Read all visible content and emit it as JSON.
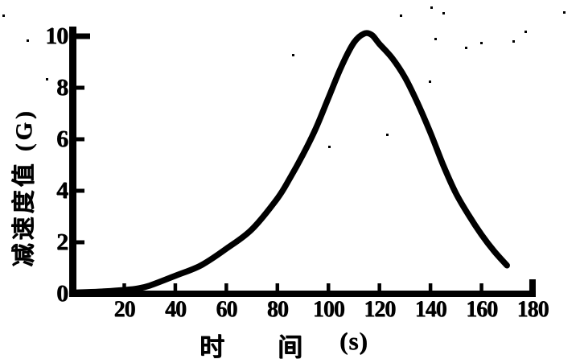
{
  "figure": {
    "background": "#ffffff",
    "ink_color": "#000000"
  },
  "chart_data": {
    "type": "line",
    "title": "",
    "xlabel": "时间 (s)",
    "xlabel_parts": [
      "时",
      "间",
      "(s)"
    ],
    "ylabel": "减速度值 (G)",
    "xlim": [
      0,
      182
    ],
    "ylim": [
      0,
      10.5
    ],
    "grid": false,
    "legend": null,
    "x_ticks": {
      "values": [
        20,
        40,
        60,
        80,
        100,
        120,
        140,
        160,
        180
      ],
      "labels": [
        "20",
        "40",
        "60",
        "80",
        "100",
        "120",
        "140",
        "160",
        "180"
      ]
    },
    "y_ticks": {
      "values": [
        0,
        2,
        4,
        6,
        8,
        10
      ],
      "labels": [
        "0",
        "2",
        "4",
        "6",
        "8",
        "10"
      ]
    },
    "series": [
      {
        "name": "减速度值",
        "x": [
          0,
          10,
          20,
          25,
          30,
          40,
          50,
          60,
          70,
          80,
          85,
          90,
          95,
          100,
          105,
          110,
          114,
          117,
          120,
          125,
          130,
          135,
          140,
          145,
          150,
          155,
          160,
          165,
          170
        ],
        "y": [
          0.05,
          0.08,
          0.15,
          0.2,
          0.32,
          0.7,
          1.1,
          1.75,
          2.5,
          3.7,
          4.5,
          5.4,
          6.4,
          7.6,
          8.8,
          9.75,
          10.1,
          10.05,
          9.7,
          9.15,
          8.4,
          7.4,
          6.25,
          5.0,
          3.9,
          3.05,
          2.3,
          1.65,
          1.1
        ]
      }
    ],
    "peak": {
      "t": 114,
      "value": 10.1
    }
  }
}
